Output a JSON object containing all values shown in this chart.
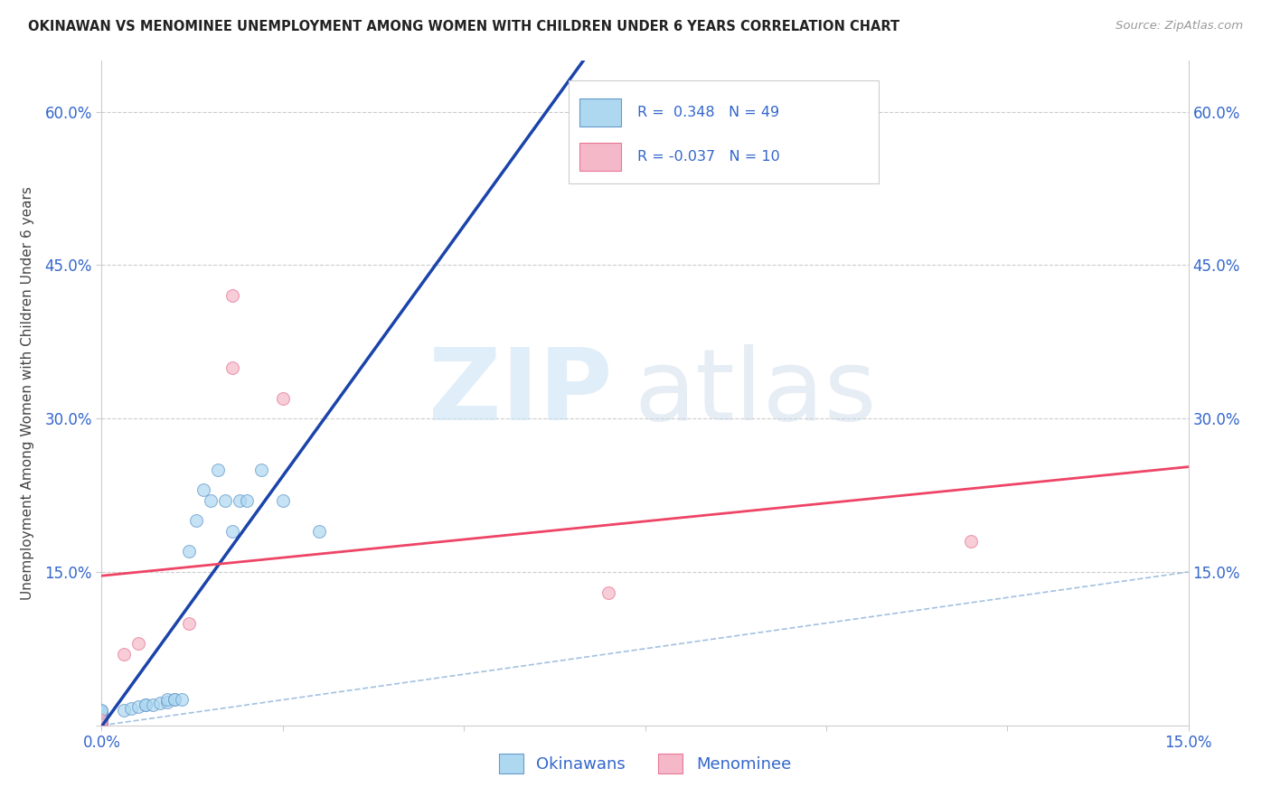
{
  "title": "OKINAWAN VS MENOMINEE UNEMPLOYMENT AMONG WOMEN WITH CHILDREN UNDER 6 YEARS CORRELATION CHART",
  "source": "Source: ZipAtlas.com",
  "ylabel_label": "Unemployment Among Women with Children Under 6 years",
  "xlim": [
    0.0,
    0.15
  ],
  "ylim": [
    0.0,
    0.65
  ],
  "xtick_positions": [
    0.0,
    0.025,
    0.05,
    0.075,
    0.1,
    0.125,
    0.15
  ],
  "xtick_labels": [
    "0.0%",
    "",
    "",
    "",
    "",
    "",
    "15.0%"
  ],
  "ytick_positions": [
    0.0,
    0.15,
    0.3,
    0.45,
    0.6
  ],
  "ytick_labels": [
    "",
    "15.0%",
    "30.0%",
    "45.0%",
    "60.0%"
  ],
  "background_color": "#ffffff",
  "grid_color": "#cccccc",
  "okinawan_x": [
    0.0,
    0.0,
    0.0,
    0.0,
    0.0,
    0.0,
    0.0,
    0.0,
    0.0,
    0.0,
    0.0,
    0.0,
    0.0,
    0.0,
    0.0,
    0.0,
    0.0,
    0.0,
    0.0,
    0.0,
    0.0,
    0.0,
    0.0,
    0.0,
    0.0,
    0.003,
    0.004,
    0.005,
    0.006,
    0.006,
    0.007,
    0.008,
    0.009,
    0.009,
    0.01,
    0.01,
    0.011,
    0.012,
    0.013,
    0.014,
    0.015,
    0.016,
    0.017,
    0.018,
    0.019,
    0.02,
    0.022,
    0.025,
    0.03
  ],
  "okinawan_y": [
    0.0,
    0.0,
    0.0,
    0.0,
    0.0,
    0.0,
    0.0,
    0.0,
    0.0,
    0.005,
    0.005,
    0.005,
    0.007,
    0.007,
    0.008,
    0.008,
    0.009,
    0.01,
    0.01,
    0.01,
    0.01,
    0.012,
    0.013,
    0.014,
    0.015,
    0.015,
    0.017,
    0.018,
    0.02,
    0.02,
    0.02,
    0.022,
    0.023,
    0.025,
    0.025,
    0.025,
    0.025,
    0.17,
    0.2,
    0.23,
    0.22,
    0.25,
    0.22,
    0.19,
    0.22,
    0.22,
    0.25,
    0.22,
    0.19
  ],
  "menominee_x": [
    0.0,
    0.0,
    0.003,
    0.005,
    0.012,
    0.018,
    0.018,
    0.025,
    0.07,
    0.12
  ],
  "menominee_y": [
    0.0,
    0.005,
    0.07,
    0.08,
    0.1,
    0.35,
    0.42,
    0.32,
    0.13,
    0.18
  ],
  "okinawan_color": "#add8f0",
  "okinawan_edge": "#6699cc",
  "menominee_color": "#f4b8c8",
  "menominee_edge": "#e87898",
  "trend_okinawan_color": "#1a44aa",
  "trend_menominee_color": "#ee4466",
  "diagonal_color": "#99bbdd",
  "legend_color": "#3366cc",
  "tick_color": "#3366cc",
  "marker_size": 100
}
